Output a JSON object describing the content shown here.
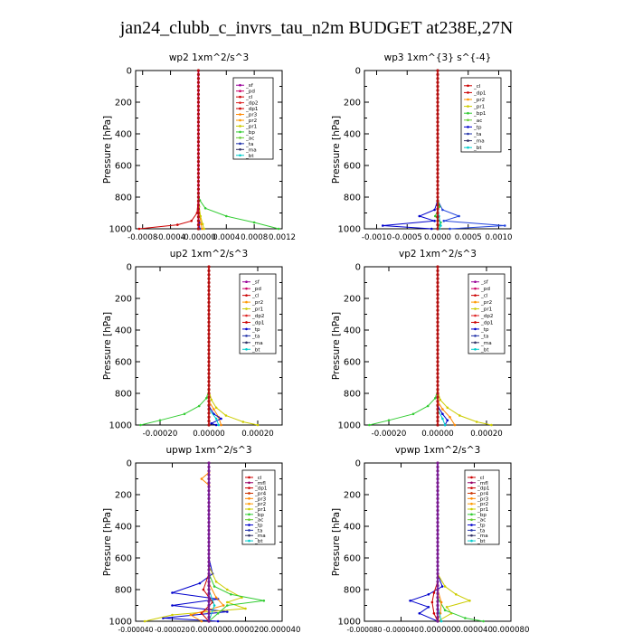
{
  "figure": {
    "title": "jan24_clubb_c_invrs_tau_n2m  BUDGET at238E,27N"
  },
  "chart_data": [
    {
      "type": "line",
      "title": "wp2   1xm^2/s^3",
      "ylabel": "Pressure  [hPa]",
      "xlim": [
        -0.0009,
        0.0012
      ],
      "ylim": [
        1000,
        0
      ],
      "yticks": [
        0,
        200,
        400,
        600,
        800,
        1000
      ],
      "xticks": [
        -0.0008,
        -0.0004,
        0.0,
        0.0004,
        0.0008,
        0.0012
      ],
      "xtick_labels": [
        "-0.0008",
        "-0.0004",
        "-0.00000",
        "0.0004",
        "0.0008",
        "0.0012"
      ],
      "legend_position": "top-right",
      "legend": [
        "_sf",
        "_pd",
        "_cl",
        "_dp2",
        "_dp1",
        "_pr3",
        "_pr2",
        "_pr1",
        "_bp",
        "_ac",
        "_ta",
        "_ma",
        "_bt"
      ],
      "series": [
        {
          "name": "_dp1",
          "color": "#cc0000",
          "p": [
            800,
            900,
            950,
            975,
            1000
          ],
          "v": [
            0.0,
            -2e-05,
            -0.0001,
            -0.0003,
            -0.00085
          ]
        },
        {
          "name": "_pr3",
          "color": "#ff8800",
          "p": [
            850,
            920,
            970,
            1000
          ],
          "v": [
            0.0,
            2e-05,
            4e-05,
            5e-05
          ]
        },
        {
          "name": "_pr1",
          "color": "#cccc00",
          "p": [
            800,
            860,
            920,
            970,
            1000
          ],
          "v": [
            0.0,
            1e-05,
            3e-05,
            6e-05,
            8e-05
          ]
        },
        {
          "name": "_bp",
          "color": "#33cc33",
          "p": [
            780,
            820,
            870,
            920,
            960,
            1000
          ],
          "v": [
            0.0,
            2e-05,
            0.0001,
            0.0004,
            0.0008,
            0.00115
          ]
        },
        {
          "name": "_ta",
          "color": "#0000cc",
          "p": [
            900,
            960,
            1000
          ],
          "v": [
            0.0,
            1e-05,
            2e-05
          ]
        },
        {
          "name": "_bt",
          "color": "#00cccc",
          "p": [
            950,
            1000
          ],
          "v": [
            0.0,
            1e-05
          ]
        },
        {
          "name": "_cl",
          "color": "#cc0066",
          "p": [
            0,
            200,
            400,
            600,
            800,
            1000
          ],
          "v": [
            0.0,
            0.0,
            0.0,
            0.0,
            0.0,
            0.0
          ]
        }
      ]
    },
    {
      "type": "line",
      "title": "wp3   1xm^{3} s^{-4}",
      "ylabel": "Pressure  [hPa]",
      "xlim": [
        -0.0012,
        0.0012
      ],
      "ylim": [
        1000,
        0
      ],
      "yticks": [
        0,
        200,
        400,
        600,
        800,
        1000
      ],
      "xticks": [
        -0.001,
        -0.0005,
        0.0,
        0.0005,
        0.001
      ],
      "xtick_labels": [
        "-0.0010",
        "-0.0005",
        "0.0000",
        "0.0005",
        "0.0010"
      ],
      "legend_position": "top-right",
      "legend": [
        "_cl",
        "_dp1",
        "_pr2",
        "_pr1",
        "_bp1",
        "_ac",
        "_tp",
        "_ta",
        "_ma",
        "_bt"
      ],
      "series": [
        {
          "name": "_tp",
          "color": "#0000cc",
          "p": [
            820,
            880,
            920,
            950,
            980,
            1000
          ],
          "v": [
            0.0,
            -5e-05,
            -0.0003,
            -5e-05,
            -0.0009,
            -0.0001
          ]
        },
        {
          "name": "_ta",
          "color": "#2244dd",
          "p": [
            820,
            880,
            920,
            950,
            980,
            1000
          ],
          "v": [
            0.0,
            8e-05,
            0.00035,
            0.0001,
            0.0011,
            0.0002
          ]
        },
        {
          "name": "_ac",
          "color": "#33cc33",
          "p": [
            800,
            860,
            920,
            960,
            1000
          ],
          "v": [
            0.0,
            3e-05,
            -4e-05,
            5e-05,
            0.0
          ]
        },
        {
          "name": "_bt",
          "color": "#00cccc",
          "p": [
            850,
            920,
            980,
            1000
          ],
          "v": [
            0.0,
            2e-05,
            5e-05,
            3e-05
          ]
        },
        {
          "name": "_cl",
          "color": "#cc0000",
          "p": [
            0,
            200,
            400,
            600,
            800,
            1000
          ],
          "v": [
            0.0,
            0.0,
            0.0,
            0.0,
            0.0,
            0.0
          ]
        }
      ]
    },
    {
      "type": "line",
      "title": "up2   1xm^2/s^3",
      "ylabel": "Pressure  [hPa]",
      "xlim": [
        -0.0003,
        0.0003
      ],
      "ylim": [
        1000,
        0
      ],
      "yticks": [
        0,
        200,
        400,
        600,
        800,
        1000
      ],
      "xticks": [
        -0.0002,
        0.0,
        0.0002
      ],
      "xtick_labels": [
        "-0.00020",
        "0.00000",
        "0.00020"
      ],
      "legend_position": "top-right",
      "legend": [
        "_sf",
        "_pd",
        "_cl",
        "_pr2",
        "_pr1",
        "_dp2",
        "_dp1",
        "_tp",
        "_ta",
        "_ma",
        "_bt"
      ],
      "series": [
        {
          "name": "_dp1",
          "color": "#33cc33",
          "p": [
            780,
            830,
            880,
            930,
            970,
            1000
          ],
          "v": [
            0.0,
            -1e-05,
            -4e-05,
            -0.0001,
            -0.0002,
            -0.00028
          ]
        },
        {
          "name": "_pr1",
          "color": "#cccc00",
          "p": [
            780,
            840,
            890,
            940,
            980,
            1000
          ],
          "v": [
            0.0,
            1e-05,
            3e-05,
            7e-05,
            0.00014,
            0.0002
          ]
        },
        {
          "name": "_pr2",
          "color": "#ff8800",
          "p": [
            850,
            900,
            950,
            1000
          ],
          "v": [
            0.0,
            2e-05,
            4e-05,
            5e-05
          ]
        },
        {
          "name": "_tp",
          "color": "#0000cc",
          "p": [
            880,
            930,
            960,
            990,
            1000
          ],
          "v": [
            0.0,
            2e-05,
            5e-05,
            1e-05,
            3e-05
          ]
        },
        {
          "name": "_bt",
          "color": "#00cccc",
          "p": [
            900,
            960,
            1000
          ],
          "v": [
            0.0,
            3e-05,
            4e-05
          ]
        },
        {
          "name": "_cl",
          "color": "#cc0000",
          "p": [
            0,
            200,
            400,
            600,
            800,
            1000
          ],
          "v": [
            0.0,
            0.0,
            0.0,
            0.0,
            0.0,
            0.0
          ]
        }
      ]
    },
    {
      "type": "line",
      "title": "vp2   1xm^2/s^3",
      "ylabel": "Pressure  [hPa]",
      "xlim": [
        -0.0003,
        0.0003
      ],
      "ylim": [
        1000,
        0
      ],
      "yticks": [
        0,
        200,
        400,
        600,
        800,
        1000
      ],
      "xticks": [
        -0.0002,
        0.0,
        0.0002
      ],
      "xtick_labels": [
        "-0.00020",
        "0.00000",
        "0.00020"
      ],
      "legend_position": "top-right",
      "legend": [
        "_sf",
        "_pd",
        "_cl",
        "_pr2",
        "_pr1",
        "_dp2",
        "_dp1",
        "_tp",
        "_ta",
        "_ma",
        "_bt"
      ],
      "series": [
        {
          "name": "_dp1",
          "color": "#33cc33",
          "p": [
            780,
            830,
            880,
            930,
            970,
            1000
          ],
          "v": [
            0.0,
            -1e-05,
            -4e-05,
            -0.0001,
            -0.0002,
            -0.00028
          ]
        },
        {
          "name": "_pr1",
          "color": "#cccc00",
          "p": [
            780,
            840,
            890,
            940,
            980,
            1000
          ],
          "v": [
            0.0,
            1e-05,
            4e-05,
            9e-05,
            0.00016,
            0.00022
          ]
        },
        {
          "name": "_pr2",
          "color": "#ff8800",
          "p": [
            850,
            900,
            950,
            1000
          ],
          "v": [
            0.0,
            2e-05,
            5e-05,
            7e-05
          ]
        },
        {
          "name": "_tp",
          "color": "#0000cc",
          "p": [
            880,
            930,
            970,
            1000
          ],
          "v": [
            0.0,
            2e-05,
            4e-05,
            3e-05
          ]
        },
        {
          "name": "_bt",
          "color": "#00cccc",
          "p": [
            900,
            960,
            1000
          ],
          "v": [
            0.0,
            2e-05,
            3e-05
          ]
        },
        {
          "name": "_cl",
          "color": "#cc0000",
          "p": [
            0,
            200,
            400,
            600,
            800,
            1000
          ],
          "v": [
            0.0,
            0.0,
            0.0,
            0.0,
            0.0,
            0.0
          ]
        }
      ]
    },
    {
      "type": "line",
      "title": "upwp   1xm^2/s^3",
      "ylabel": "Pressure  [hPa]",
      "xlim": [
        -4e-05,
        4e-05
      ],
      "ylim": [
        1000,
        0
      ],
      "yticks": [
        0,
        200,
        400,
        600,
        800,
        1000
      ],
      "xticks": [
        -4e-05,
        -2e-05,
        0.0,
        2e-05,
        4e-05
      ],
      "xtick_labels": [
        "-0.000040",
        "-0.000020",
        "0.000000",
        "0.000020",
        "0.000040"
      ],
      "legend_position": "top-right",
      "legend": [
        "_cl",
        "_mfl",
        "_dp1",
        "_pr4",
        "_pr3",
        "_pr2",
        "_pr1",
        "_bp",
        "_ac",
        "_tp",
        "_ta",
        "_ma",
        "_bt"
      ],
      "series": [
        {
          "name": "_tp",
          "color": "#0000cc",
          "p": [
            600,
            700,
            760,
            820,
            860,
            900,
            940,
            980,
            1000
          ],
          "v": [
            0.0,
            2e-06,
            -5e-06,
            -2e-05,
            5e-06,
            -2e-05,
            1e-05,
            -2.5e-05,
            5e-06
          ]
        },
        {
          "name": "_pr1",
          "color": "#cccc00",
          "p": [
            650,
            750,
            800,
            850,
            880,
            920,
            960,
            1000
          ],
          "v": [
            0.0,
            4e-06,
            1e-05,
            1.8e-05,
            1e-05,
            2e-05,
            -2e-05,
            -3.5e-05
          ]
        },
        {
          "name": "_bp",
          "color": "#33cc33",
          "p": [
            700,
            780,
            830,
            870,
            900,
            950,
            1000
          ],
          "v": [
            0.0,
            3e-06,
            1.2e-05,
            3e-05,
            1e-05,
            5e-06,
            0.0
          ]
        },
        {
          "name": "_pr2",
          "color": "#ff8800",
          "p": [
            60,
            100,
            140,
            760,
            850,
            900,
            960,
            1000
          ],
          "v": [
            0.0,
            -4e-06,
            0.0,
            0.0,
            4e-06,
            8e-06,
            -1e-05,
            -4e-06
          ]
        },
        {
          "name": "_dp1",
          "color": "#cc0000",
          "p": [
            700,
            800,
            880,
            950,
            1000
          ],
          "v": [
            0.0,
            -3e-06,
            2e-06,
            -4e-06,
            0.0
          ]
        },
        {
          "name": "_bt",
          "color": "#00cccc",
          "p": [
            800,
            900,
            1000
          ],
          "v": [
            0.0,
            3e-06,
            0.0
          ]
        },
        {
          "name": "_cl",
          "color": "#6600aa",
          "p": [
            0,
            200,
            400,
            600,
            800,
            1000
          ],
          "v": [
            0.0,
            0.0,
            0.0,
            0.0,
            0.0,
            0.0
          ]
        }
      ]
    },
    {
      "type": "line",
      "title": "vpwp   1xm^2/s^3",
      "ylabel": "Pressure  [hPa]",
      "xlim": [
        -8e-05,
        8e-05
      ],
      "ylim": [
        1000,
        0
      ],
      "yticks": [
        0,
        200,
        400,
        600,
        800,
        1000
      ],
      "xticks": [
        -8e-05,
        -4e-05,
        0.0,
        4e-05,
        8e-05
      ],
      "xtick_labels": [
        "-0.000080",
        "-0.000040",
        "0.000000",
        "0.000040",
        "0.000080"
      ],
      "legend_position": "top-right",
      "legend": [
        "_cl",
        "_mfl",
        "_dp1",
        "_pr4",
        "_pr3",
        "_pr2",
        "_pr1",
        "_bp",
        "_ac",
        "_tp",
        "_ta",
        "_ma",
        "_bt"
      ],
      "series": [
        {
          "name": "_tp",
          "color": "#0000cc",
          "p": [
            700,
            780,
            830,
            870,
            910,
            950,
            1000
          ],
          "v": [
            0.0,
            5e-06,
            -1e-05,
            -3e-05,
            -1e-05,
            -2e-05,
            0.0
          ]
        },
        {
          "name": "_pr1",
          "color": "#cccc00",
          "p": [
            700,
            780,
            830,
            870,
            910,
            950,
            1000
          ],
          "v": [
            0.0,
            8e-06,
            2e-05,
            3.5e-05,
            1e-05,
            1.5e-05,
            0.0
          ]
        },
        {
          "name": "_bp",
          "color": "#33cc33",
          "p": [
            850,
            930,
            980,
            1000
          ],
          "v": [
            0.0,
            8e-06,
            3e-05,
            5e-05
          ]
        },
        {
          "name": "_dp1",
          "color": "#cc0000",
          "p": [
            750,
            820,
            880,
            950,
            1000
          ],
          "v": [
            0.0,
            -4e-06,
            -6e-06,
            -4e-06,
            0.0
          ]
        },
        {
          "name": "_pr2",
          "color": "#ff8800",
          "p": [
            800,
            880,
            950,
            1000
          ],
          "v": [
            0.0,
            4e-06,
            3e-06,
            0.0
          ]
        },
        {
          "name": "_bt",
          "color": "#00cccc",
          "p": [
            900,
            1000
          ],
          "v": [
            0.0,
            4e-06
          ]
        },
        {
          "name": "_cl",
          "color": "#6600aa",
          "p": [
            0,
            200,
            400,
            600,
            800,
            1000
          ],
          "v": [
            0.0,
            0.0,
            0.0,
            0.0,
            0.0,
            0.0
          ]
        }
      ]
    }
  ]
}
